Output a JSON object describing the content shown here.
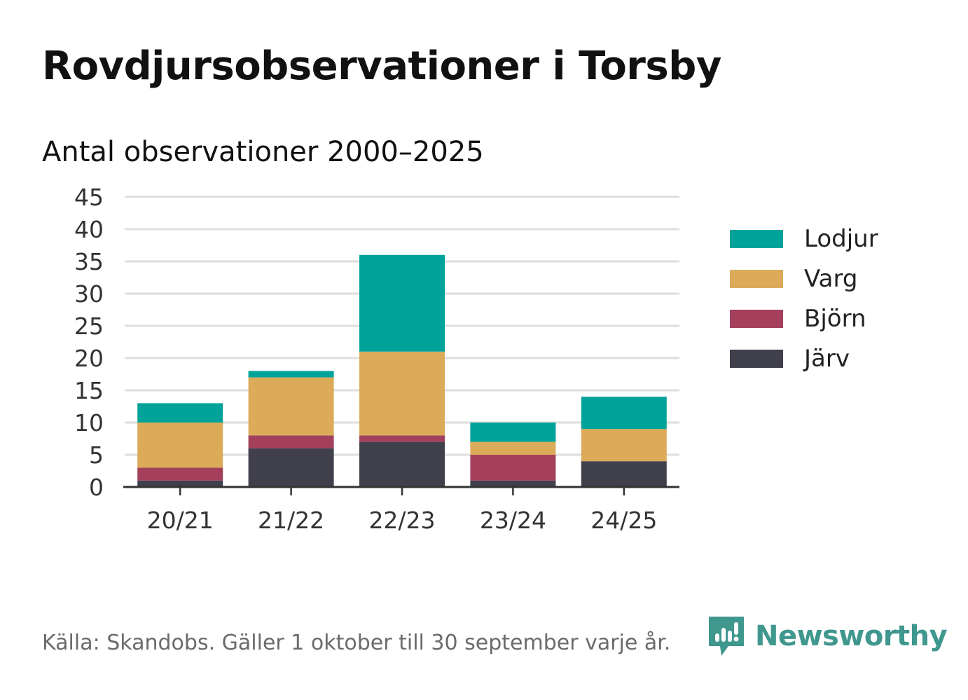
{
  "header": {
    "title": "Rovdjursobservationer i Torsby",
    "subtitle": "Antal observationer 2000–2025"
  },
  "footer": {
    "source": "Källa: Skandobs. Gäller 1 oktober till 30 september varje år.",
    "brand": "Newsworthy",
    "brand_icon": "newsworthy-logo-icon",
    "brand_color": "#3f978e"
  },
  "chart_data": {
    "type": "bar",
    "stacked": true,
    "categories": [
      "20/21",
      "21/22",
      "22/23",
      "23/24",
      "24/25"
    ],
    "series": [
      {
        "name": "Järv",
        "color": "#403f4c",
        "values": [
          1,
          6,
          7,
          1,
          4
        ]
      },
      {
        "name": "Björn",
        "color": "#a4405c",
        "values": [
          2,
          2,
          1,
          4,
          0
        ]
      },
      {
        "name": "Varg",
        "color": "#dbab59",
        "values": [
          7,
          9,
          13,
          2,
          5
        ]
      },
      {
        "name": "Lodjur",
        "color": "#00a39a",
        "values": [
          3,
          1,
          15,
          3,
          5
        ]
      }
    ],
    "ylim": [
      0,
      45
    ],
    "yticks": [
      0,
      5,
      10,
      15,
      20,
      25,
      30,
      35,
      40,
      45
    ],
    "grid": true,
    "legend_position": "right",
    "legend_order": [
      "Lodjur",
      "Varg",
      "Björn",
      "Järv"
    ],
    "xlabel": "",
    "ylabel": ""
  }
}
